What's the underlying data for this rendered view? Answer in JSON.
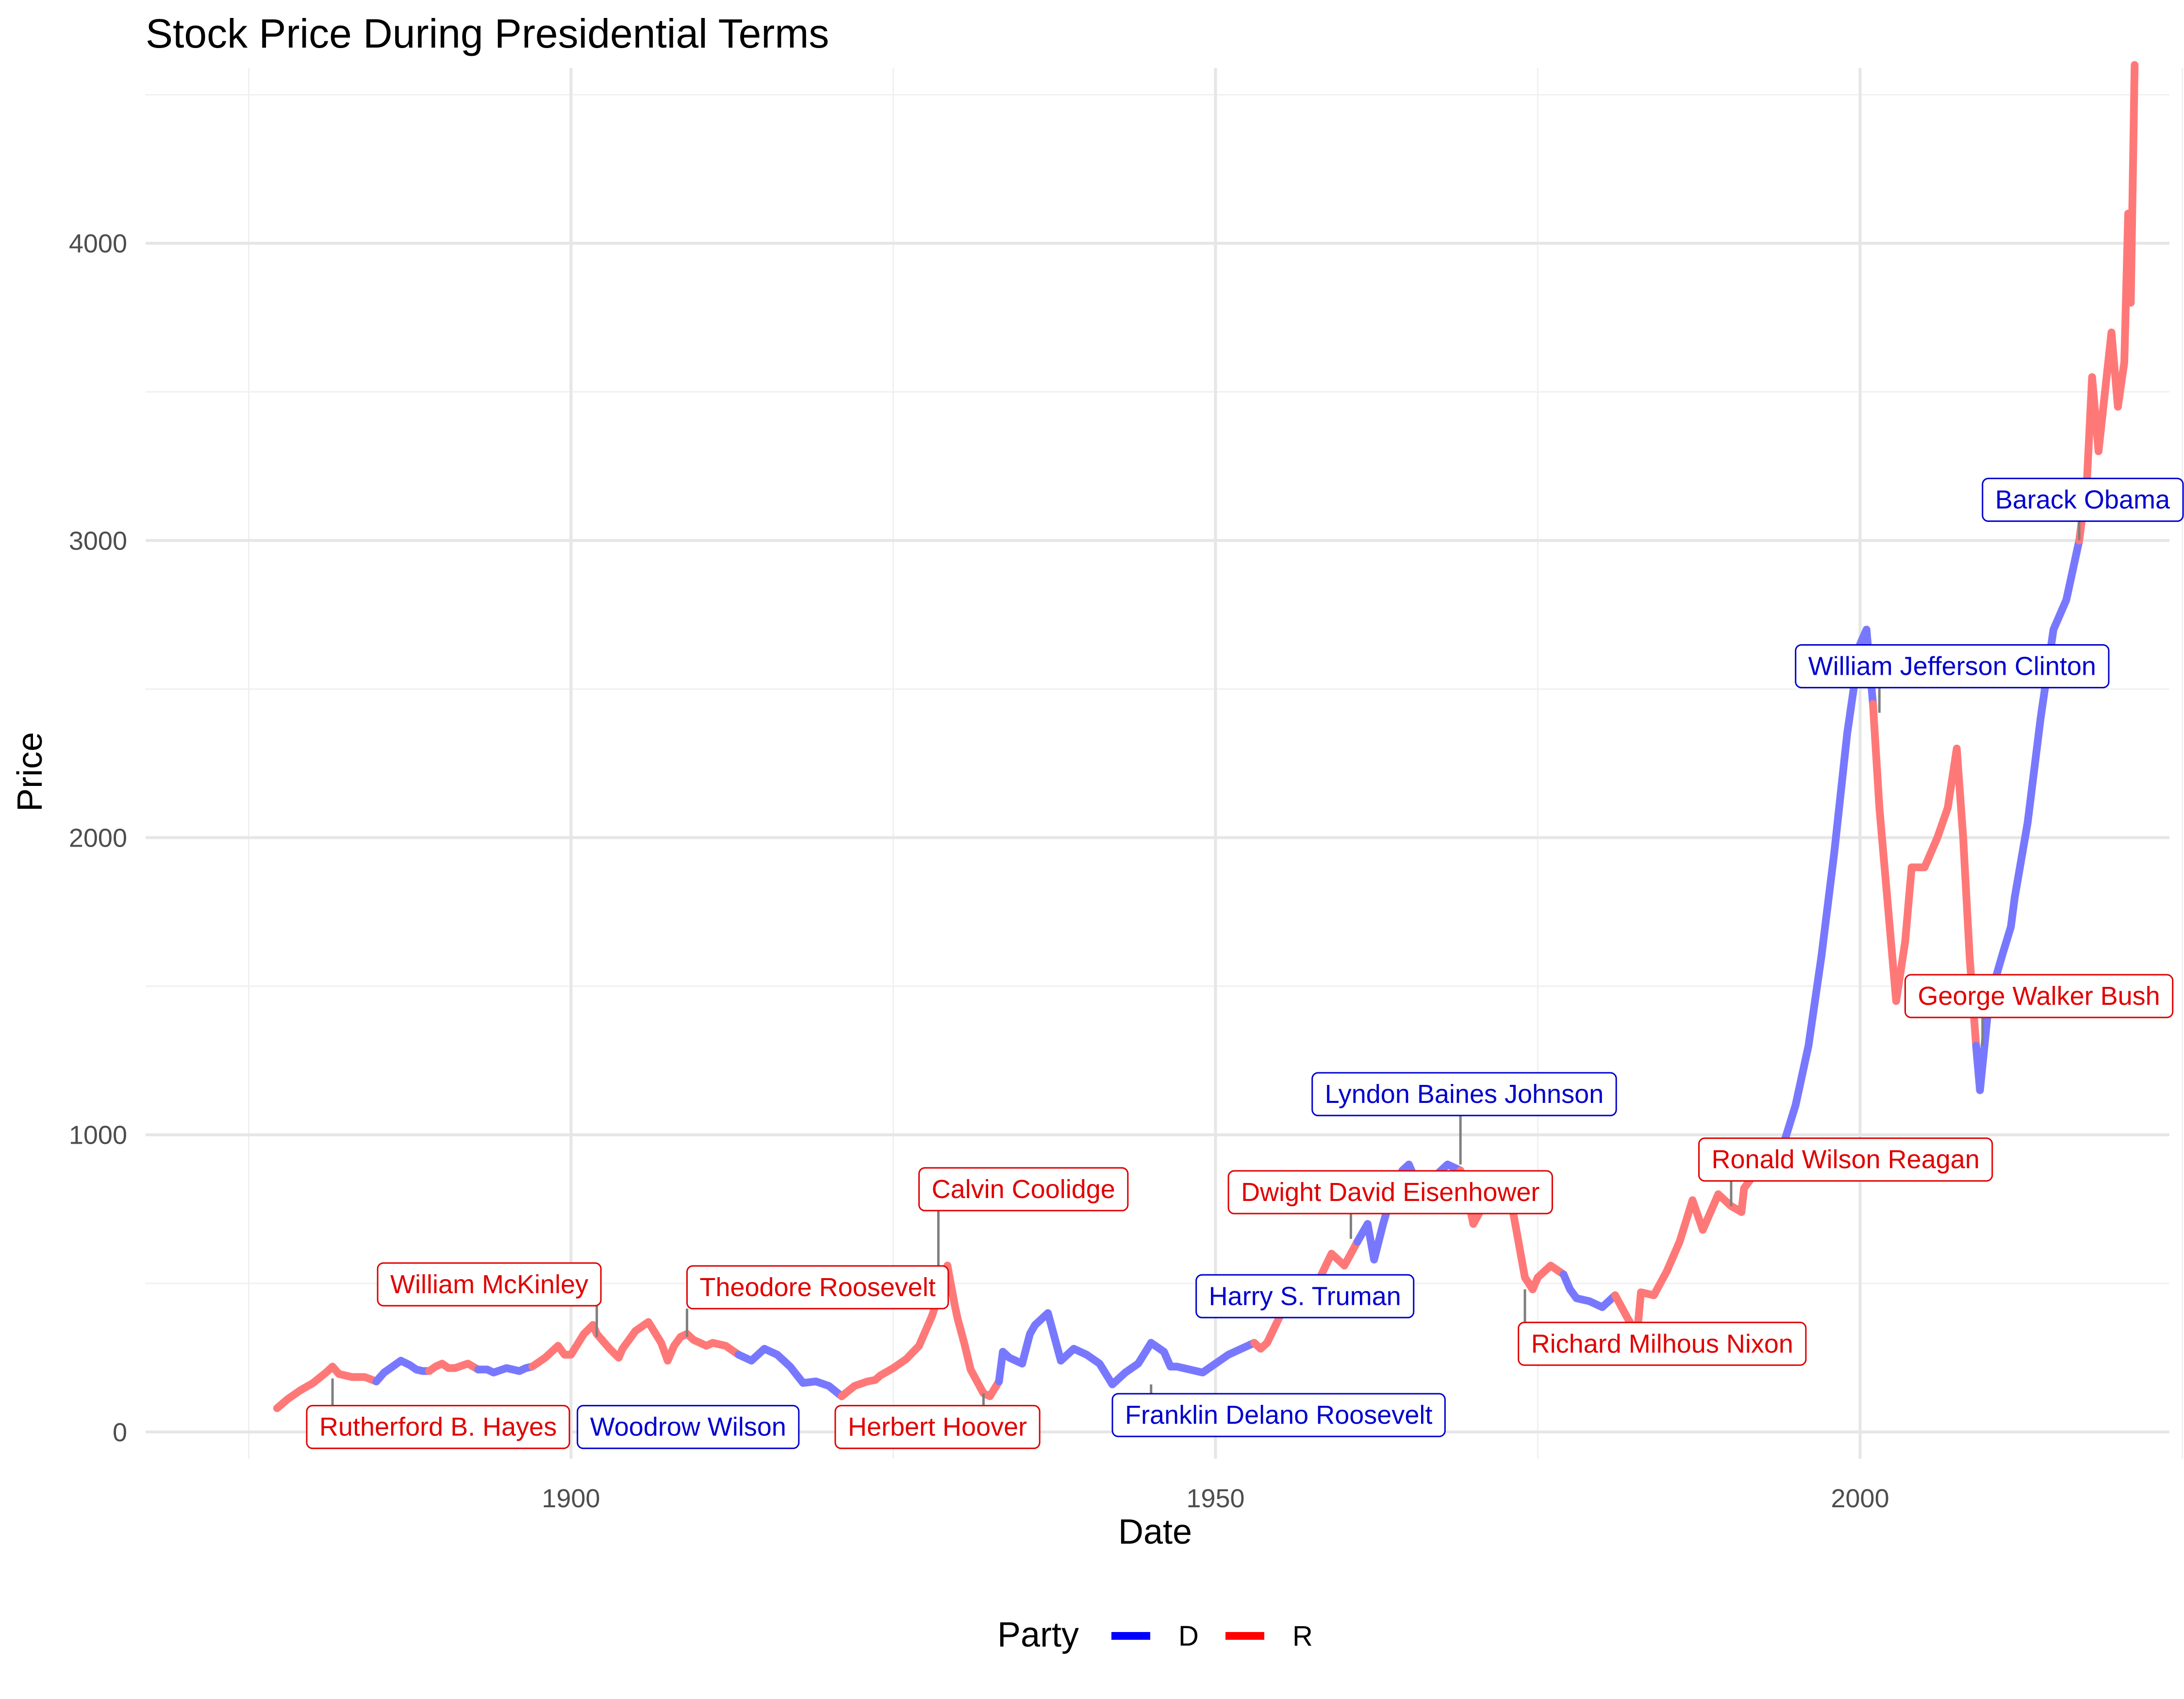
{
  "chart_data": {
    "type": "line",
    "title": "Stock Price During Presidential Terms",
    "xlabel": "Date",
    "ylabel": "Price",
    "xlim": [
      1867,
      2024
    ],
    "ylim": [
      -90,
      4590
    ],
    "x_ticks": [
      1900,
      1950,
      2000
    ],
    "x_minor_ticks": [
      1875,
      1925,
      1975,
      2025
    ],
    "y_ticks": [
      0,
      1000,
      2000,
      3000,
      4000
    ],
    "y_minor_ticks": [
      500,
      1500,
      2500,
      3500,
      4500
    ],
    "grid": true,
    "legend": {
      "title": "Party",
      "position": "bottom",
      "items": [
        {
          "key": "D",
          "label": "D",
          "color": "#0000ff"
        },
        {
          "key": "R",
          "label": "R",
          "color": "#ff0000"
        }
      ]
    },
    "line_colors": {
      "D": "#7878ff",
      "R": "#ff7878"
    },
    "segments": [
      {
        "party": "R",
        "points": [
          [
            1877.2,
            80
          ],
          [
            1878,
            110
          ],
          [
            1879,
            140
          ],
          [
            1880,
            165
          ],
          [
            1881,
            200
          ],
          [
            1881.5,
            220
          ],
          [
            1882,
            195
          ],
          [
            1882.5,
            190
          ],
          [
            1883,
            185
          ],
          [
            1884,
            185
          ],
          [
            1884.9,
            170
          ]
        ]
      },
      {
        "party": "D",
        "points": [
          [
            1884.9,
            170
          ],
          [
            1885.5,
            200
          ],
          [
            1886,
            215
          ],
          [
            1886.8,
            240
          ],
          [
            1887.5,
            225
          ],
          [
            1888,
            210
          ],
          [
            1888.5,
            205
          ],
          [
            1889,
            205
          ]
        ]
      },
      {
        "party": "R",
        "points": [
          [
            1889,
            205
          ],
          [
            1889.5,
            220
          ],
          [
            1890,
            230
          ],
          [
            1890.5,
            215
          ],
          [
            1891,
            215
          ],
          [
            1892,
            230
          ],
          [
            1892.8,
            210
          ]
        ]
      },
      {
        "party": "D",
        "points": [
          [
            1892.8,
            210
          ],
          [
            1893.5,
            210
          ],
          [
            1894,
            200
          ],
          [
            1895,
            215
          ],
          [
            1896,
            205
          ],
          [
            1896.5,
            215
          ],
          [
            1897,
            220
          ]
        ]
      },
      {
        "party": "R",
        "points": [
          [
            1897,
            220
          ],
          [
            1898,
            250
          ],
          [
            1899,
            290
          ],
          [
            1899.5,
            260
          ],
          [
            1900,
            260
          ],
          [
            1901,
            330
          ],
          [
            1901.7,
            360
          ]
        ]
      },
      {
        "party": "R",
        "points": [
          [
            1901.7,
            360
          ],
          [
            1902,
            330
          ],
          [
            1903,
            280
          ],
          [
            1903.7,
            250
          ],
          [
            1904,
            280
          ],
          [
            1905,
            340
          ],
          [
            1906,
            370
          ],
          [
            1907,
            300
          ],
          [
            1907.5,
            240
          ],
          [
            1908,
            290
          ],
          [
            1908.5,
            320
          ],
          [
            1909,
            330
          ]
        ]
      },
      {
        "party": "R",
        "points": [
          [
            1909,
            330
          ],
          [
            1909.5,
            310
          ],
          [
            1910,
            300
          ],
          [
            1910.5,
            290
          ],
          [
            1911,
            300
          ],
          [
            1912,
            290
          ],
          [
            1913,
            260
          ]
        ]
      },
      {
        "party": "D",
        "points": [
          [
            1913,
            260
          ],
          [
            1914,
            240
          ],
          [
            1915,
            280
          ],
          [
            1916,
            260
          ],
          [
            1917,
            220
          ],
          [
            1918,
            165
          ],
          [
            1919,
            170
          ],
          [
            1920,
            155
          ],
          [
            1921,
            120
          ]
        ]
      },
      {
        "party": "R",
        "points": [
          [
            1921,
            120
          ],
          [
            1922,
            155
          ],
          [
            1923,
            170
          ],
          [
            1923.6,
            175
          ]
        ]
      },
      {
        "party": "R",
        "points": [
          [
            1923.6,
            175
          ],
          [
            1924,
            190
          ],
          [
            1925,
            215
          ],
          [
            1926,
            245
          ],
          [
            1927,
            290
          ],
          [
            1928,
            390
          ],
          [
            1928.7,
            480
          ],
          [
            1929,
            530
          ],
          [
            1929.2,
            560
          ]
        ]
      },
      {
        "party": "R",
        "points": [
          [
            1929.2,
            560
          ],
          [
            1929.8,
            420
          ],
          [
            1930,
            380
          ],
          [
            1930.5,
            300
          ],
          [
            1931,
            210
          ],
          [
            1932,
            130
          ],
          [
            1932.5,
            120
          ],
          [
            1933.2,
            170
          ]
        ]
      },
      {
        "party": "D",
        "points": [
          [
            1933.2,
            170
          ],
          [
            1933.5,
            270
          ],
          [
            1934,
            250
          ],
          [
            1935,
            230
          ],
          [
            1935.6,
            330
          ],
          [
            1936,
            360
          ],
          [
            1937,
            400
          ],
          [
            1937.5,
            320
          ],
          [
            1938,
            240
          ],
          [
            1939,
            280
          ],
          [
            1940,
            260
          ],
          [
            1941,
            230
          ],
          [
            1942,
            160
          ],
          [
            1943,
            200
          ],
          [
            1944,
            230
          ],
          [
            1945,
            300
          ]
        ]
      },
      {
        "party": "D",
        "points": [
          [
            1945,
            300
          ],
          [
            1946,
            270
          ],
          [
            1946.5,
            220
          ],
          [
            1947,
            220
          ],
          [
            1948,
            210
          ],
          [
            1949,
            200
          ],
          [
            1950,
            230
          ],
          [
            1951,
            260
          ],
          [
            1952,
            280
          ],
          [
            1953,
            300
          ]
        ]
      },
      {
        "party": "R",
        "points": [
          [
            1953,
            300
          ],
          [
            1953.5,
            280
          ],
          [
            1954,
            300
          ],
          [
            1955,
            390
          ],
          [
            1956,
            470
          ],
          [
            1957,
            440
          ],
          [
            1958,
            510
          ],
          [
            1959,
            600
          ],
          [
            1960,
            560
          ],
          [
            1961,
            640
          ]
        ]
      },
      {
        "party": "D",
        "points": [
          [
            1961,
            640
          ],
          [
            1961.8,
            700
          ],
          [
            1962.3,
            580
          ],
          [
            1963,
            700
          ],
          [
            1963.8,
            820
          ]
        ]
      },
      {
        "party": "D",
        "points": [
          [
            1963.8,
            820
          ],
          [
            1964.5,
            880
          ],
          [
            1965,
            900
          ],
          [
            1965.5,
            850
          ],
          [
            1966.2,
            750
          ],
          [
            1967,
            860
          ],
          [
            1968,
            900
          ],
          [
            1969,
            880
          ]
        ]
      },
      {
        "party": "R",
        "points": [
          [
            1969,
            880
          ],
          [
            1969.5,
            800
          ],
          [
            1970,
            700
          ],
          [
            1971,
            780
          ],
          [
            1972,
            840
          ],
          [
            1973,
            760
          ],
          [
            1974,
            520
          ],
          [
            1974.6,
            480
          ]
        ]
      },
      {
        "party": "R",
        "points": [
          [
            1974.6,
            480
          ],
          [
            1975,
            520
          ],
          [
            1976,
            560
          ],
          [
            1977,
            530
          ]
        ]
      },
      {
        "party": "D",
        "points": [
          [
            1977,
            530
          ],
          [
            1977.5,
            480
          ],
          [
            1978,
            450
          ],
          [
            1979,
            440
          ],
          [
            1980,
            420
          ],
          [
            1981,
            460
          ]
        ]
      },
      {
        "party": "R",
        "points": [
          [
            1981,
            460
          ],
          [
            1982,
            380
          ],
          [
            1982.7,
            330
          ],
          [
            1983,
            470
          ],
          [
            1984,
            460
          ],
          [
            1985,
            540
          ],
          [
            1986,
            640
          ],
          [
            1987,
            780
          ],
          [
            1987.8,
            680
          ],
          [
            1988,
            700
          ],
          [
            1989,
            800
          ]
        ]
      },
      {
        "party": "R",
        "points": [
          [
            1989,
            800
          ],
          [
            1990,
            760
          ],
          [
            1990.8,
            740
          ],
          [
            1991,
            820
          ],
          [
            1992,
            880
          ],
          [
            1993,
            940
          ]
        ]
      },
      {
        "party": "D",
        "points": [
          [
            1993,
            940
          ],
          [
            1994,
            960
          ],
          [
            1995,
            1100
          ],
          [
            1996,
            1300
          ],
          [
            1997,
            1600
          ],
          [
            1998,
            1950
          ],
          [
            1999,
            2350
          ],
          [
            2000,
            2650
          ],
          [
            2000.5,
            2700
          ],
          [
            2001,
            2450
          ]
        ]
      },
      {
        "party": "R",
        "points": [
          [
            2001,
            2450
          ],
          [
            2001.5,
            2100
          ],
          [
            2002,
            1850
          ],
          [
            2002.8,
            1450
          ],
          [
            2003.5,
            1650
          ],
          [
            2004,
            1900
          ],
          [
            2005,
            1900
          ],
          [
            2006,
            2000
          ],
          [
            2006.8,
            2100
          ],
          [
            2007.5,
            2300
          ],
          [
            2008,
            2000
          ],
          [
            2008.5,
            1600
          ],
          [
            2009,
            1300
          ]
        ]
      },
      {
        "party": "D",
        "points": [
          [
            2009,
            1300
          ],
          [
            2009.3,
            1150
          ],
          [
            2010,
            1450
          ],
          [
            2011,
            1600
          ],
          [
            2011.7,
            1700
          ],
          [
            2012,
            1800
          ],
          [
            2013,
            2050
          ],
          [
            2014,
            2400
          ],
          [
            2015,
            2700
          ],
          [
            2016,
            2800
          ],
          [
            2017,
            3000
          ]
        ]
      },
      {
        "party": "R",
        "points": [
          [
            2017,
            3000
          ],
          [
            2017.6,
            3200
          ],
          [
            2018,
            3550
          ],
          [
            2018.5,
            3300
          ],
          [
            2019,
            3500
          ],
          [
            2019.5,
            3700
          ],
          [
            2020,
            3450
          ],
          [
            2020.5,
            3600
          ],
          [
            2020.8,
            4100
          ],
          [
            2021,
            3800
          ],
          [
            2021.3,
            4600
          ]
        ]
      }
    ],
    "labels": [
      {
        "text": "Rutherford B. Hayes",
        "party": "R",
        "x": 1879.5,
        "y": 20,
        "anchor_x": 1881.5,
        "anchor_y": 180
      },
      {
        "text": "William McKinley",
        "party": "R",
        "x": 1885,
        "y": 500,
        "anchor_x": 1902,
        "anchor_y": 320
      },
      {
        "text": "Theodore Roosevelt",
        "party": "R",
        "x": 1909,
        "y": 490,
        "anchor_x": 1909,
        "anchor_y": 320
      },
      {
        "text": "Woodrow Wilson",
        "party": "D",
        "x": 1900.5,
        "y": 20,
        "anchor_x": 1918,
        "anchor_y": 90
      },
      {
        "text": "Herbert Hoover",
        "party": "R",
        "x": 1920.5,
        "y": 20,
        "anchor_x": 1932,
        "anchor_y": 130
      },
      {
        "text": "Calvin Coolidge",
        "party": "R",
        "x": 1927,
        "y": 820,
        "anchor_x": 1928.5,
        "anchor_y": 500
      },
      {
        "text": "Franklin Delano Roosevelt",
        "party": "D",
        "x": 1942,
        "y": 60,
        "anchor_x": 1945,
        "anchor_y": 160
      },
      {
        "text": "Harry S. Truman",
        "party": "D",
        "x": 1948.5,
        "y": 460,
        "anchor_x": 1950.5,
        "anchor_y": 460
      },
      {
        "text": "Dwight David Eisenhower",
        "party": "R",
        "x": 1951,
        "y": 810,
        "anchor_x": 1960.5,
        "anchor_y": 650
      },
      {
        "text": "Lyndon Baines Johnson",
        "party": "D",
        "x": 1957.5,
        "y": 1140,
        "anchor_x": 1969,
        "anchor_y": 900
      },
      {
        "text": "Richard Milhous Nixon",
        "party": "R",
        "x": 1973.5,
        "y": 300,
        "anchor_x": 1974,
        "anchor_y": 480
      },
      {
        "text": "Ronald Wilson Reagan",
        "party": "R",
        "x": 1987.5,
        "y": 920,
        "anchor_x": 1990,
        "anchor_y": 760
      },
      {
        "text": "William Jefferson Clinton",
        "party": "D",
        "x": 1995,
        "y": 2580,
        "anchor_x": 2001.5,
        "anchor_y": 2420
      },
      {
        "text": "George Walker Bush",
        "party": "R",
        "x": 2003.5,
        "y": 1470,
        "anchor_x": 2009.5,
        "anchor_y": 1300
      },
      {
        "text": "Barack Obama",
        "party": "D",
        "x": 2009.5,
        "y": 3140,
        "anchor_x": 2017,
        "anchor_y": 3000
      }
    ]
  }
}
